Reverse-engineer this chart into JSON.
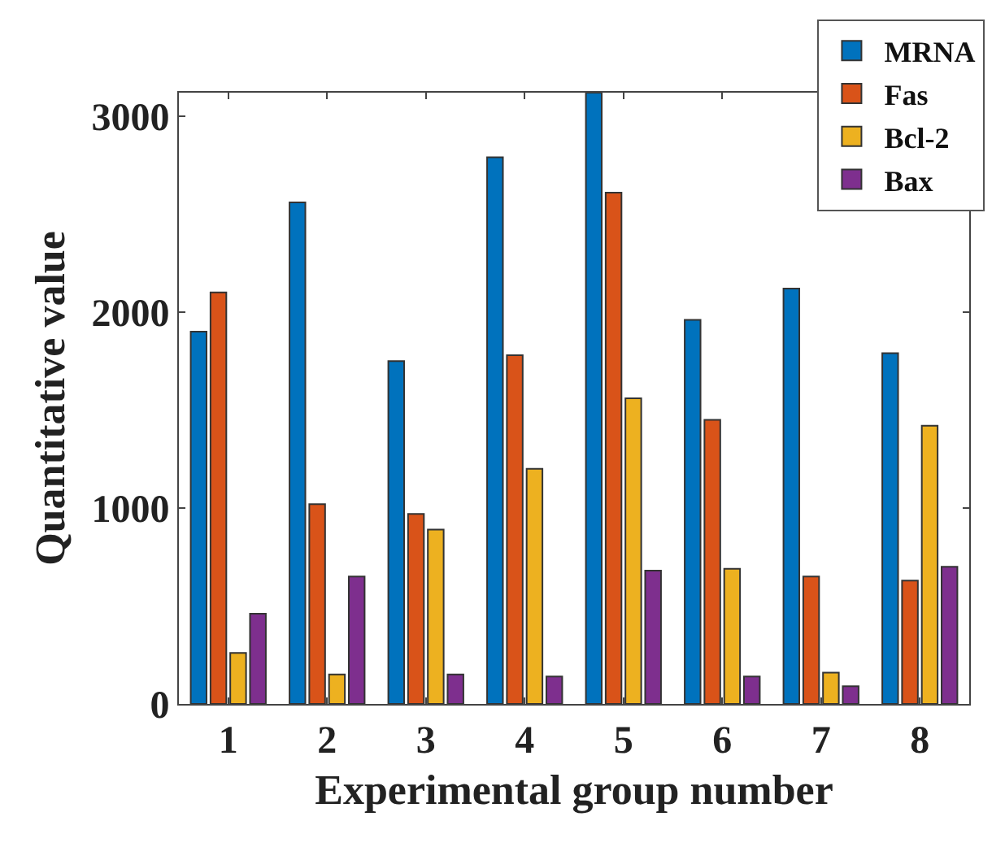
{
  "chart_data": {
    "type": "bar",
    "xlabel": "Experimental group number",
    "ylabel": "Quantitative value",
    "categories": [
      "1",
      "2",
      "3",
      "4",
      "5",
      "6",
      "7",
      "8"
    ],
    "series": [
      {
        "name": "MRNA",
        "color": "#0072bd",
        "values": [
          1900,
          2560,
          1750,
          2790,
          3120,
          1960,
          2120,
          1790
        ]
      },
      {
        "name": "Fas",
        "color": "#d95319",
        "values": [
          2100,
          1020,
          970,
          1780,
          2610,
          1450,
          650,
          630
        ]
      },
      {
        "name": "Bcl-2",
        "color": "#edb120",
        "values": [
          260,
          150,
          890,
          1200,
          1560,
          690,
          160,
          1420
        ]
      },
      {
        "name": "Bax",
        "color": "#7e2f8e",
        "values": [
          460,
          650,
          150,
          140,
          680,
          140,
          90,
          700
        ]
      }
    ],
    "ylim": [
      0,
      3120
    ],
    "yticks": [
      0,
      1000,
      2000,
      3000
    ],
    "legend": "top right"
  }
}
